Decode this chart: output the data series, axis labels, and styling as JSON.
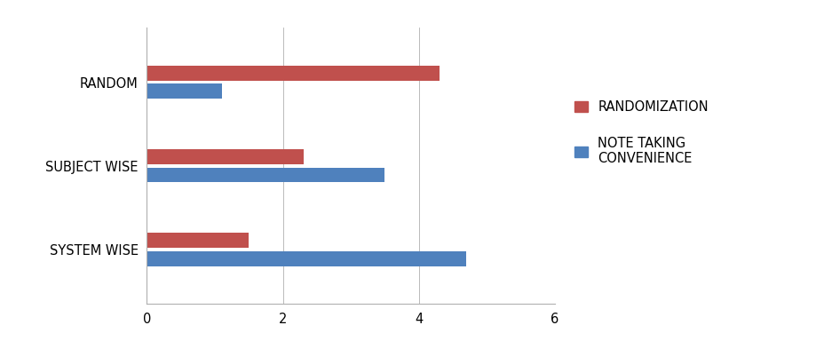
{
  "categories": [
    "SYSTEM WISE",
    "SUBJECT WISE",
    "RANDOM"
  ],
  "randomization": [
    1.5,
    2.3,
    4.3
  ],
  "note_taking": [
    4.7,
    3.5,
    1.1
  ],
  "randomization_color": "#c0504d",
  "note_taking_color": "#4f81bd",
  "legend_label_1": "RANDOMIZATION",
  "legend_label_2": "NOTE TAKING\nCONVENIENCE",
  "xlim": [
    0,
    6
  ],
  "xticks": [
    0,
    2,
    4,
    6
  ],
  "bar_height": 0.18,
  "bar_gap": 0.04,
  "background_color": "#ffffff",
  "grid_color": "#b0b0b0",
  "label_fontsize": 10.5,
  "legend_fontsize": 10.5,
  "tick_fontsize": 10.5
}
